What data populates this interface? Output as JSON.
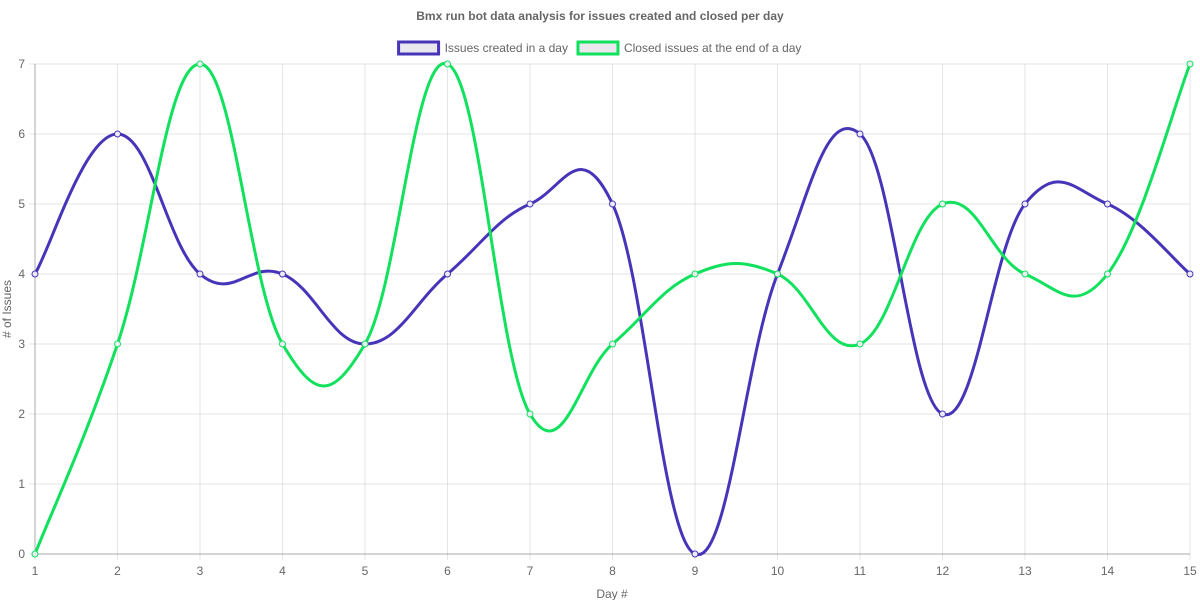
{
  "chart_data": {
    "type": "line",
    "title": "Bmx run bot data analysis for issues created and closed per day",
    "xlabel": "Day #",
    "ylabel": "# of Issues",
    "x": [
      1,
      2,
      3,
      4,
      5,
      6,
      7,
      8,
      9,
      10,
      11,
      12,
      13,
      14,
      15
    ],
    "ylim": [
      0,
      7
    ],
    "yticks": [
      0,
      1,
      2,
      3,
      4,
      5,
      6,
      7
    ],
    "grid": true,
    "legend_position": "top",
    "series": [
      {
        "name": "Issues created in a day",
        "color": "#4735b9",
        "values": [
          4,
          6,
          4,
          4,
          3,
          4,
          5,
          5,
          0,
          4,
          6,
          2,
          5,
          5,
          4
        ]
      },
      {
        "name": "Closed issues at the end of a day",
        "color": "#11e15d",
        "values": [
          0,
          3,
          7,
          3,
          3,
          7,
          2,
          3,
          4,
          4,
          3,
          5,
          4,
          4,
          7
        ]
      }
    ]
  }
}
